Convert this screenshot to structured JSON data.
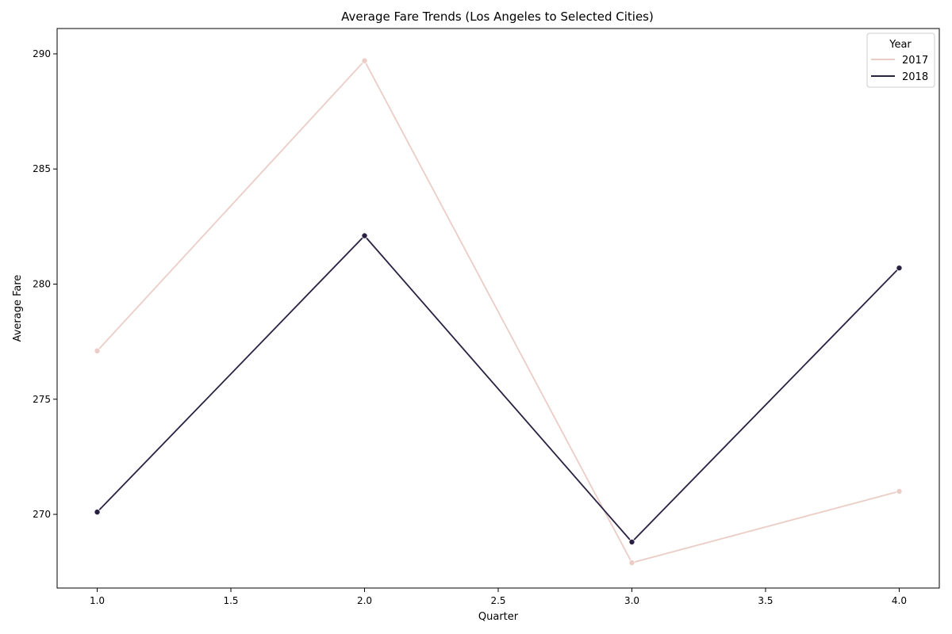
{
  "chart_data": {
    "type": "line",
    "title": "Average Fare Trends (Los Angeles to Selected Cities)",
    "xlabel": "Quarter",
    "ylabel": "Average Fare",
    "xlim": [
      0.85,
      4.15
    ],
    "ylim": [
      266.8,
      291.1
    ],
    "xticks": [
      "1.0",
      "1.5",
      "2.0",
      "2.5",
      "3.0",
      "3.5",
      "4.0"
    ],
    "yticks": [
      "270",
      "275",
      "280",
      "285",
      "290"
    ],
    "x": [
      1,
      2,
      3,
      4
    ],
    "grid": false,
    "legend": {
      "title": "Year",
      "placement": "top-right"
    },
    "series": [
      {
        "name": "2017",
        "color": "#ebcdc6",
        "values": [
          277.1,
          289.7,
          267.9,
          271.0
        ]
      },
      {
        "name": "2018",
        "color": "#2a2142",
        "values": [
          270.1,
          282.1,
          268.8,
          280.7
        ]
      }
    ]
  }
}
